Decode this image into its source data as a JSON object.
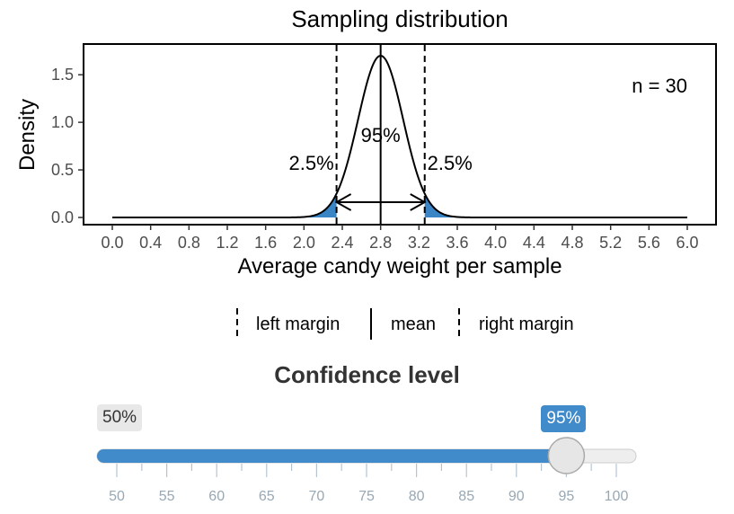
{
  "chart_data": {
    "type": "line",
    "title": "Sampling distribution",
    "xlabel": "Average candy weight per sample",
    "ylabel": "Density",
    "xlim": [
      0.0,
      6.0
    ],
    "ylim": [
      0.0,
      1.7
    ],
    "x_ticks": [
      "0.0",
      "0.4",
      "0.8",
      "1.2",
      "1.6",
      "2.0",
      "2.4",
      "2.8",
      "3.2",
      "3.6",
      "4.0",
      "4.4",
      "4.8",
      "5.2",
      "5.6",
      "6.0"
    ],
    "y_ticks": [
      "0.0",
      "0.5",
      "1.0",
      "1.5"
    ],
    "distribution": {
      "kind": "normal",
      "mean": 2.8,
      "sd": 0.235,
      "peak_density": 1.7
    },
    "left_margin": 2.34,
    "right_margin": 3.26,
    "annotations": {
      "sample_size": "n = 30",
      "center_label": "95%",
      "left_tail_label": "2.5%",
      "right_tail_label": "2.5%"
    },
    "tail_fill_color": "#3a85c5",
    "legend": {
      "position": "bottom",
      "items": [
        {
          "label": "left margin",
          "linetype": "dashed"
        },
        {
          "label": "mean",
          "linetype": "solid"
        },
        {
          "label": "right margin",
          "linetype": "dashed"
        }
      ]
    }
  },
  "control": {
    "title": "Confidence level",
    "min": 50,
    "max": 100,
    "step": 1,
    "value": 95,
    "min_label": "50%",
    "value_label": "95%",
    "tick_labels": [
      "50",
      "55",
      "60",
      "65",
      "70",
      "75",
      "80",
      "85",
      "90",
      "95",
      "100"
    ],
    "accent_color": "#428bca"
  }
}
